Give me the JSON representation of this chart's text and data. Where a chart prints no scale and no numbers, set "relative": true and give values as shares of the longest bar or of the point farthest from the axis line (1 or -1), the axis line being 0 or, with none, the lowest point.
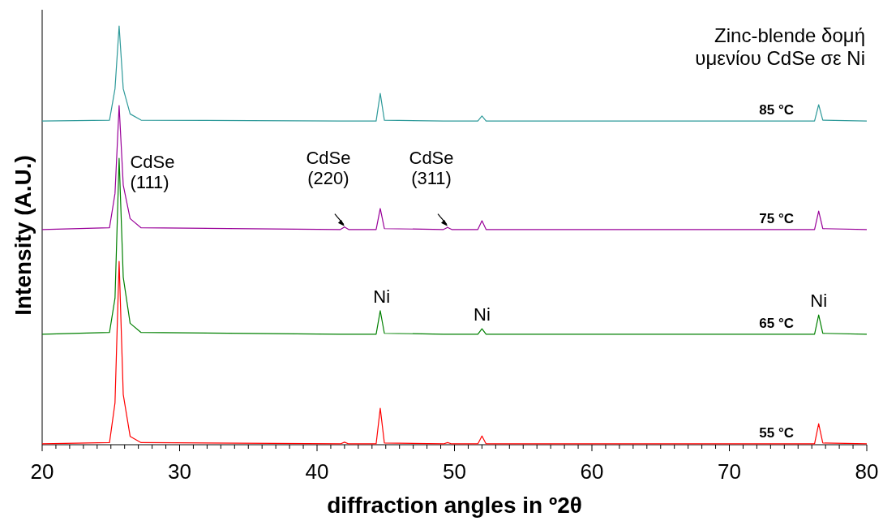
{
  "chart_data": {
    "type": "line",
    "relative": true,
    "xlabel": "diffraction angles in º2θ",
    "ylabel": "Intensity (A.U.)",
    "xlim": [
      20,
      80
    ],
    "xticks": [
      20,
      {
        "value": 21,
        "label": null
      },
      {
        "value": 22,
        "label": null
      },
      {
        "value": 23,
        "label": null
      },
      {
        "value": 24,
        "label": null
      },
      {
        "value": 25,
        "label": null
      },
      {
        "value": 26,
        "label": null
      },
      {
        "value": 27,
        "label": null
      },
      {
        "value": 28,
        "label": null
      },
      {
        "value": 29,
        "label": null
      },
      30,
      {
        "value": 31,
        "label": null
      },
      {
        "value": 32,
        "label": null
      },
      {
        "value": 33,
        "label": null
      },
      {
        "value": 34,
        "label": null
      },
      {
        "value": 35,
        "label": null
      },
      {
        "value": 36,
        "label": null
      },
      {
        "value": 37,
        "label": null
      },
      {
        "value": 38,
        "label": null
      },
      {
        "value": 39,
        "label": null
      },
      40,
      {
        "value": 41,
        "label": null
      },
      {
        "value": 42,
        "label": null
      },
      {
        "value": 43,
        "label": null
      },
      {
        "value": 44,
        "label": null
      },
      {
        "value": 45,
        "label": null
      },
      {
        "value": 46,
        "label": null
      },
      {
        "value": 47,
        "label": null
      },
      {
        "value": 48,
        "label": null
      },
      {
        "value": 49,
        "label": null
      },
      50,
      {
        "value": 51,
        "label": null
      },
      {
        "value": 52,
        "label": null
      },
      {
        "value": 53,
        "label": null
      },
      {
        "value": 54,
        "label": null
      },
      {
        "value": 55,
        "label": null
      },
      {
        "value": 56,
        "label": null
      },
      {
        "value": 57,
        "label": null
      },
      {
        "value": 58,
        "label": null
      },
      {
        "value": 59,
        "label": null
      },
      60,
      {
        "value": 61,
        "label": null
      },
      {
        "value": 62,
        "label": null
      },
      {
        "value": 63,
        "label": null
      },
      {
        "value": 64,
        "label": null
      },
      {
        "value": 65,
        "label": null
      },
      {
        "value": 66,
        "label": null
      },
      {
        "value": 67,
        "label": null
      },
      {
        "value": 68,
        "label": null
      },
      {
        "value": 69,
        "label": null
      },
      70,
      {
        "value": 71,
        "label": null
      },
      {
        "value": 72,
        "label": null
      },
      {
        "value": 73,
        "label": null
      },
      {
        "value": 74,
        "label": null
      },
      {
        "value": 75,
        "label": null
      },
      {
        "value": 76,
        "label": null
      },
      {
        "value": 77,
        "label": null
      },
      {
        "value": 78,
        "label": null
      },
      {
        "value": 79,
        "label": null
      },
      80
    ],
    "x": [
      20,
      24.9,
      25.3,
      25.6,
      25.9,
      26.4,
      27.2,
      41.7,
      42,
      42.3,
      44.3,
      44.6,
      44.9,
      49.2,
      49.5,
      49.8,
      51.7,
      52,
      52.3,
      76.2,
      76.5,
      76.8,
      80
    ],
    "series": [
      {
        "name": "85 °C",
        "color": "#2e9a9a",
        "values": [
          0.773,
          0.775,
          0.85,
          1,
          0.85,
          0.79,
          0.775,
          0.773,
          0.773,
          0.773,
          0.773,
          0.839,
          0.775,
          0.773,
          0.773,
          0.773,
          0.773,
          0.785,
          0.773,
          0.773,
          0.812,
          0.775,
          0.773
        ]
      },
      {
        "name": "75 °C",
        "color": "#990099",
        "values": [
          0.514,
          0.518,
          0.6,
          0.81,
          0.62,
          0.54,
          0.518,
          0.514,
          0.52,
          0.514,
          0.514,
          0.564,
          0.516,
          0.514,
          0.519,
          0.514,
          0.514,
          0.535,
          0.514,
          0.514,
          0.558,
          0.516,
          0.514
        ]
      },
      {
        "name": "65 °C",
        "color": "#008000",
        "values": [
          0.264,
          0.268,
          0.35,
          0.684,
          0.4,
          0.29,
          0.268,
          0.264,
          0.264,
          0.264,
          0.264,
          0.32,
          0.266,
          0.264,
          0.264,
          0.264,
          0.264,
          0.277,
          0.264,
          0.264,
          0.31,
          0.266,
          0.264
        ]
      },
      {
        "name": "55 °C",
        "color": "#ff0000",
        "values": [
          0.002,
          0.005,
          0.1,
          0.438,
          0.12,
          0.02,
          0.005,
          0.002,
          0.006,
          0.002,
          0.002,
          0.087,
          0.004,
          0.002,
          0.005,
          0.002,
          0.002,
          0.021,
          0.002,
          0.002,
          0.05,
          0.004,
          0.002
        ]
      }
    ],
    "annotations": [
      "Zinc-blende δομή\nυμενίου CdSe σε Ni",
      "CdSe\n(111)",
      {
        "text": "CdSe\n(220)",
        "x": 42,
        "y": 0.52
      },
      {
        "text": "CdSe\n(311)",
        "x": 49.5,
        "y": 0.52
      },
      {
        "text": "Ni",
        "x": 44.7,
        "y": 0.32
      },
      {
        "text": "Ni",
        "x": 52,
        "y": 0.277
      },
      {
        "text": "Ni",
        "x": 76.5,
        "y": 0.31
      }
    ]
  }
}
